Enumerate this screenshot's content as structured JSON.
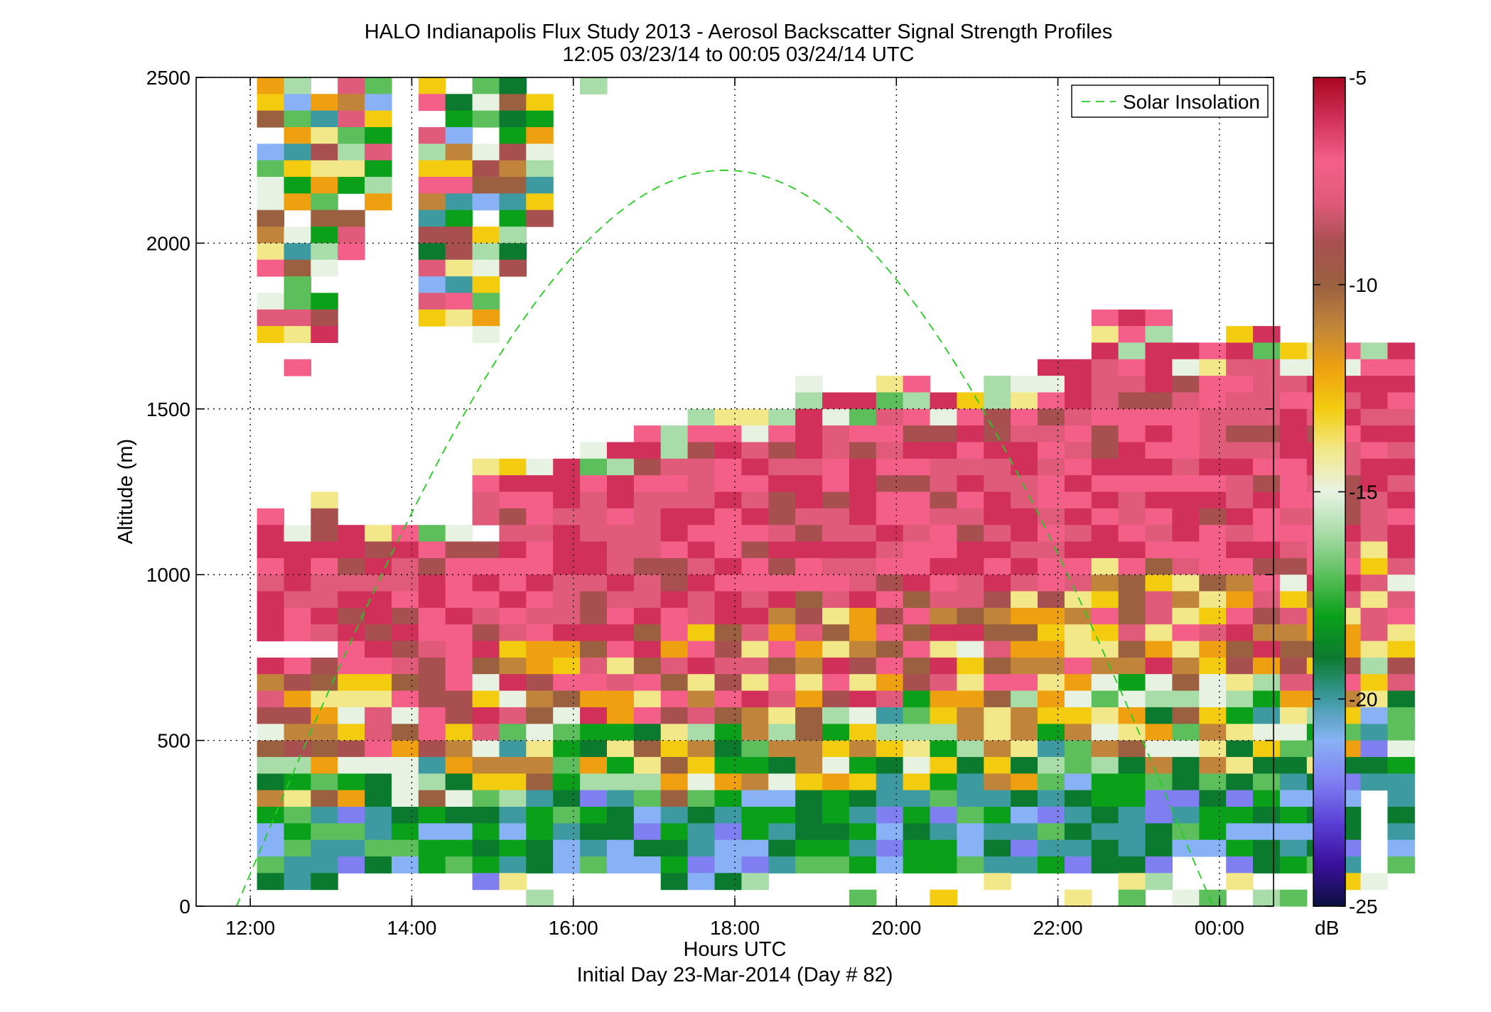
{
  "chart_data": {
    "type": "heatmap",
    "title": "HALO Indianapolis Flux Study 2013 - Aerosol Backscatter Signal Strength Profiles",
    "subtitle": "12:05 03/23/14 to 00:05 03/24/14  UTC",
    "xlabel": "Hours UTC",
    "xlabel2": "Initial Day 23-Mar-2014 (Day # 82)",
    "ylabel": "Altitude (m)",
    "x_ticks": [
      {
        "value": 12,
        "label": "12:00"
      },
      {
        "value": 14,
        "label": "14:00"
      },
      {
        "value": 16,
        "label": "16:00"
      },
      {
        "value": 18,
        "label": "18:00"
      },
      {
        "value": 20,
        "label": "20:00"
      },
      {
        "value": 22,
        "label": "22:00"
      },
      {
        "value": 24,
        "label": "00:00"
      }
    ],
    "y_ticks": [
      0,
      500,
      1000,
      1500,
      2000,
      2500
    ],
    "xlim": [
      11.33,
      24.67
    ],
    "ylim": [
      0,
      2500
    ],
    "grid": true,
    "legend": {
      "position": "top-right",
      "entries": [
        {
          "label": "Solar Insolation",
          "color": "#22cc22",
          "style": "dashed"
        }
      ]
    },
    "colorbar": {
      "label": "dB",
      "min": -25,
      "max": -5,
      "ticks": [
        -5,
        -10,
        -15,
        -20,
        -25
      ]
    },
    "colormap": [
      "#0b1140",
      "#3a0f9a",
      "#5a3fd6",
      "#7f7ff2",
      "#88b2f5",
      "#3d9aa0",
      "#0c7a2e",
      "#0aa01a",
      "#5cbf5c",
      "#a8dca8",
      "#e8f2e2",
      "#f2e88a",
      "#f3cc10",
      "#eea010",
      "#c0853a",
      "#9a6040",
      "#a85050",
      "#e05a7a",
      "#f45f8a",
      "#d0305a",
      "#a8061e"
    ],
    "heatmap": {
      "x_start": 12.083,
      "x_step": 0.3333,
      "y_top": 2500,
      "y_bin": 50,
      "columns": [
        {
          "top": 1200,
          "bottom": 50,
          "hole": [
            790,
            760
          ],
          "noise": [
            1700,
            2500
          ]
        },
        {
          "top": 1150,
          "bottom": 50,
          "hole": [
            790,
            760
          ],
          "noise": [
            1620,
            2500
          ]
        },
        {
          "top": 1270,
          "bottom": 50,
          "hole": [
            790,
            760
          ],
          "noise": [
            1700,
            2500
          ]
        },
        {
          "top": 1170,
          "bottom": 100,
          "noise": [
            1950,
            2500
          ]
        },
        {
          "top": 1170,
          "bottom": 100,
          "noise": [
            2080,
            2500
          ]
        },
        {
          "top": 1170,
          "bottom": 100
        },
        {
          "top": 1170,
          "bottom": 100,
          "noise": [
            1700,
            2500
          ]
        },
        {
          "top": 1170,
          "bottom": 100,
          "noise": [
            1750,
            2500
          ]
        },
        {
          "top": 1330,
          "bottom": 50,
          "hole": [
            1150,
            1120
          ],
          "noise": [
            1700,
            2500
          ]
        },
        {
          "top": 1330,
          "bottom": 100,
          "noise": [
            1900,
            2500
          ]
        },
        {
          "top": 1340,
          "bottom": 100,
          "noise": [
            2030,
            2500
          ]
        },
        {
          "top": 1370,
          "bottom": 100
        },
        {
          "top": 1410,
          "bottom": 100,
          "noise": [
            2390,
            2500
          ]
        },
        {
          "top": 1410,
          "bottom": 100
        },
        {
          "top": 1440,
          "bottom": 100,
          "hole": [
            1320,
            1290
          ]
        },
        {
          "top": 1450,
          "bottom": 75
        },
        {
          "top": 1480,
          "bottom": 50
        },
        {
          "top": 1490,
          "bottom": 75
        },
        {
          "top": 1500,
          "bottom": 100
        },
        {
          "top": 1520,
          "bottom": 100
        },
        {
          "top": 1600,
          "bottom": 100
        },
        {
          "top": 1530,
          "bottom": 100
        },
        {
          "top": 1560,
          "bottom": 100
        },
        {
          "top": 1590,
          "bottom": 100
        },
        {
          "top": 1600,
          "bottom": 100
        },
        {
          "top": 1560,
          "bottom": 100
        },
        {
          "top": 1560,
          "bottom": 100
        },
        {
          "top": 1580,
          "bottom": 100
        },
        {
          "top": 1600,
          "bottom": 100
        },
        {
          "top": 1660,
          "bottom": 100
        },
        {
          "top": 1670,
          "bottom": 100
        },
        {
          "top": 1810,
          "bottom": 100
        },
        {
          "top": 1780,
          "bottom": 100
        },
        {
          "top": 1810,
          "bottom": 100
        },
        {
          "top": 1700,
          "bottom": 130
        },
        {
          "top": 1700,
          "bottom": 130
        },
        {
          "top": 1740,
          "bottom": 100
        },
        {
          "top": 1750,
          "bottom": 100
        },
        {
          "top": 1720,
          "bottom": 100
        },
        {
          "top": 1680,
          "bottom": 100
        },
        {
          "top": 1680,
          "bottom": 100
        },
        {
          "top": 1700,
          "bottom": 350
        },
        {
          "top": 1700,
          "bottom": 120
        }
      ]
    },
    "solar_insolation": {
      "start_x": 11.83,
      "end_x": 23.92,
      "peak_x": 17.85,
      "peak_y": 2220
    }
  }
}
